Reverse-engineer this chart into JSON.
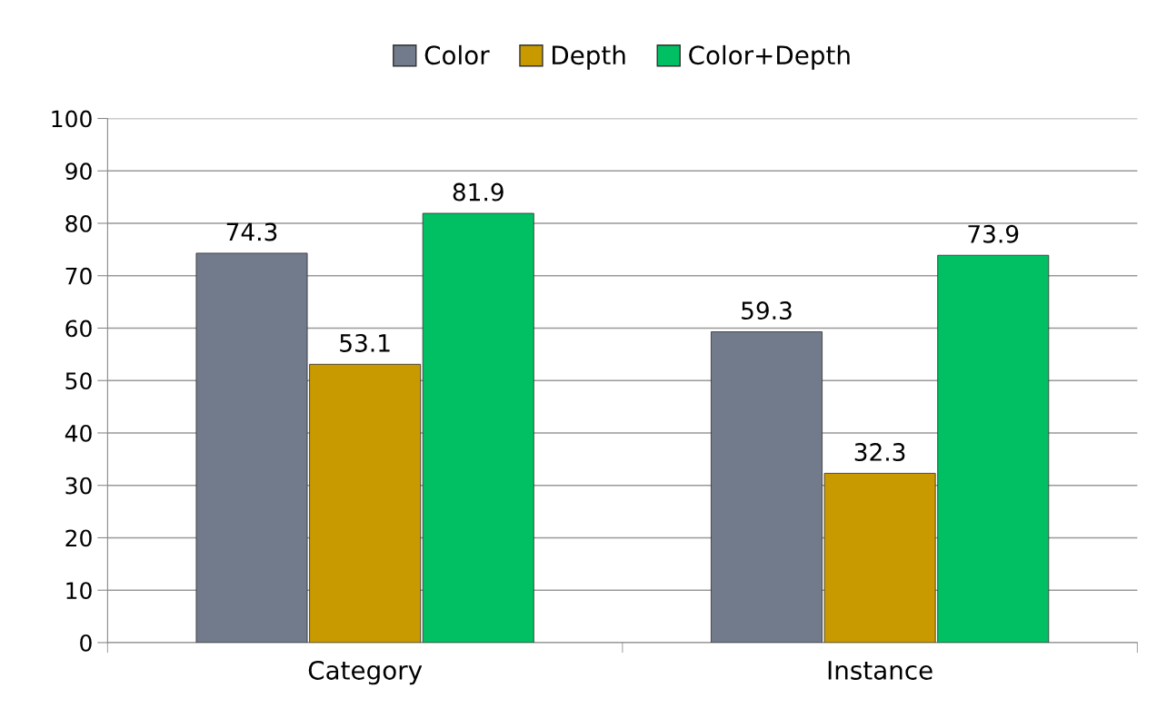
{
  "chart_data": {
    "type": "bar",
    "categories": [
      "Category",
      "Instance"
    ],
    "series": [
      {
        "name": "Color",
        "color": "#717b8c",
        "values": [
          74.3,
          59.3
        ]
      },
      {
        "name": "Depth",
        "color": "#c99a00",
        "values": [
          53.1,
          32.3
        ]
      },
      {
        "name": "Color+Depth",
        "color": "#00c063",
        "values": [
          81.9,
          73.9
        ]
      }
    ],
    "ylim": [
      0,
      100
    ],
    "yticks": [
      0,
      10,
      20,
      30,
      40,
      50,
      60,
      70,
      80,
      90,
      100
    ],
    "grid": "y",
    "legend": "top",
    "data_labels": true
  }
}
